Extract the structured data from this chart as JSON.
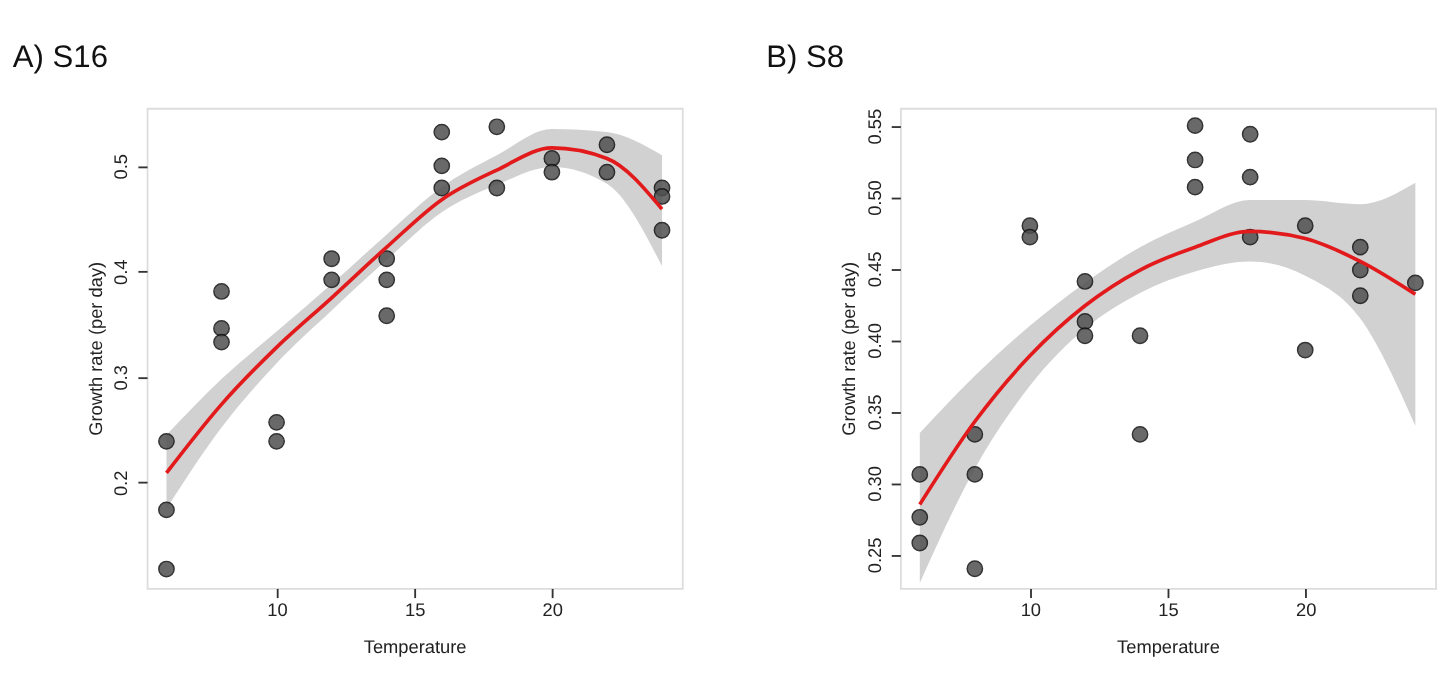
{
  "chart_data": [
    {
      "type": "scatter",
      "title": "A) S16",
      "xlabel": "Temperature",
      "ylabel": "Growth rate (per day)",
      "xlim": [
        5.28,
        24.72
      ],
      "ylim": [
        0.1,
        0.555
      ],
      "xticks": [
        10,
        15,
        20
      ],
      "yticks": [
        0.2,
        0.3,
        0.4,
        0.5
      ],
      "grid": false,
      "series": [
        {
          "color": "#505050",
          "marker": "circle",
          "x": [
            6,
            6,
            6,
            8,
            8,
            8,
            10,
            10,
            12,
            12,
            14,
            14,
            14,
            16,
            16,
            16,
            18,
            18,
            20,
            20,
            22,
            22,
            24,
            24,
            24
          ],
          "values": [
            0.239,
            0.174,
            0.118,
            0.381,
            0.346,
            0.333,
            0.257,
            0.239,
            0.412,
            0.392,
            0.412,
            0.392,
            0.358,
            0.532,
            0.5,
            0.479,
            0.537,
            0.479,
            0.507,
            0.494,
            0.52,
            0.494,
            0.479,
            0.471,
            0.439
          ]
        },
        {
          "type": "line",
          "marker": "none",
          "color": "#e31a1c",
          "line_style": "solid",
          "x": [
            6,
            8,
            10,
            12,
            14,
            16,
            18,
            20,
            22,
            24
          ],
          "values": [
            0.209,
            0.274,
            0.328,
            0.375,
            0.423,
            0.468,
            0.496,
            0.517,
            0.507,
            0.459
          ],
          "lower": [
            0.175,
            0.252,
            0.313,
            0.363,
            0.411,
            0.456,
            0.482,
            0.499,
            0.483,
            0.405
          ],
          "upper": [
            0.245,
            0.298,
            0.343,
            0.388,
            0.435,
            0.48,
            0.51,
            0.535,
            0.532,
            0.51
          ]
        }
      ]
    },
    {
      "type": "scatter",
      "title": "B) S8",
      "xlabel": "Temperature",
      "ylabel": "Growth rate (per day)",
      "xlim": [
        5.28,
        24.72
      ],
      "ylim": [
        0.2265,
        0.5625
      ],
      "xticks": [
        10,
        15,
        20
      ],
      "yticks": [
        0.25,
        {
          "value": 0.3,
          "label": "0.30"
        },
        0.35,
        {
          "value": 0.4,
          "label": "0.40"
        },
        0.45,
        {
          "value": 0.5,
          "label": "0.50"
        },
        0.55
      ],
      "grid": false,
      "series": [
        {
          "color": "#505050",
          "marker": "circle",
          "x": [
            6,
            6,
            6,
            8,
            8,
            8,
            10,
            10,
            12,
            12,
            12,
            14,
            14,
            16,
            16,
            16,
            18,
            18,
            18,
            20,
            20,
            22,
            22,
            22,
            24
          ],
          "values": [
            0.306,
            0.276,
            0.258,
            0.334,
            0.306,
            0.24,
            0.48,
            0.472,
            0.441,
            0.413,
            0.403,
            0.403,
            0.334,
            0.55,
            0.526,
            0.507,
            0.544,
            0.514,
            0.472,
            0.48,
            0.393,
            0.465,
            0.449,
            0.431,
            0.44
          ]
        },
        {
          "type": "line",
          "marker": "none",
          "color": "#e31a1c",
          "line_style": "solid",
          "x": [
            6,
            8,
            10,
            12,
            14,
            16,
            18,
            20,
            22,
            24
          ],
          "values": [
            0.285,
            0.343,
            0.389,
            0.424,
            0.449,
            0.465,
            0.476,
            0.471,
            0.455,
            0.432
          ],
          "lower": [
            0.23,
            0.31,
            0.368,
            0.408,
            0.433,
            0.448,
            0.455,
            0.445,
            0.415,
            0.34
          ],
          "upper": [
            0.335,
            0.375,
            0.41,
            0.44,
            0.465,
            0.483,
            0.498,
            0.498,
            0.495,
            0.51
          ]
        }
      ]
    }
  ]
}
